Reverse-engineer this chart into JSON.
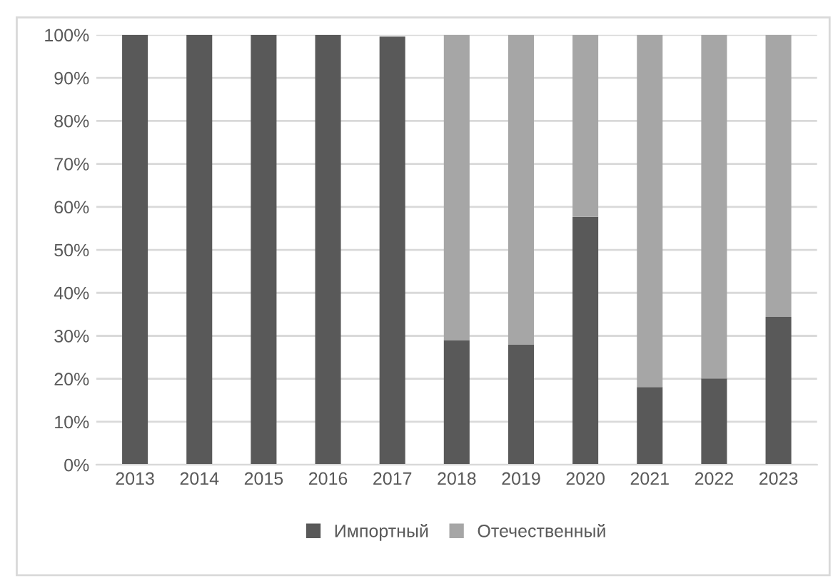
{
  "chart_data": {
    "type": "bar",
    "stacked": true,
    "categories": [
      "2013",
      "2014",
      "2015",
      "2016",
      "2017",
      "2018",
      "2019",
      "2020",
      "2021",
      "2022",
      "2023"
    ],
    "series": [
      {
        "name": "Импортный",
        "color": "#595959",
        "values": [
          100,
          100,
          100,
          100,
          99.6,
          29,
          28,
          57.7,
          18.1,
          20.1,
          34.4
        ]
      },
      {
        "name": "Отечественный",
        "color": "#a6a6a6",
        "values": [
          0,
          0,
          0,
          0,
          null,
          71,
          72,
          42.3,
          81.9,
          79.9,
          65.6
        ]
      }
    ],
    "ylim": [
      0,
      100
    ],
    "yticks": [
      {
        "value": 0,
        "label": "0%"
      },
      {
        "value": 10,
        "label": "10%"
      },
      {
        "value": 20,
        "label": "20%"
      },
      {
        "value": 30,
        "label": "30%"
      },
      {
        "value": 40,
        "label": "40%"
      },
      {
        "value": 50,
        "label": "50%"
      },
      {
        "value": 60,
        "label": "60%"
      },
      {
        "value": 70,
        "label": "70%"
      },
      {
        "value": 80,
        "label": "80%"
      },
      {
        "value": 90,
        "label": "90%"
      },
      {
        "value": 100,
        "label": "100%"
      }
    ],
    "grid": "y",
    "legend": "bottom"
  }
}
